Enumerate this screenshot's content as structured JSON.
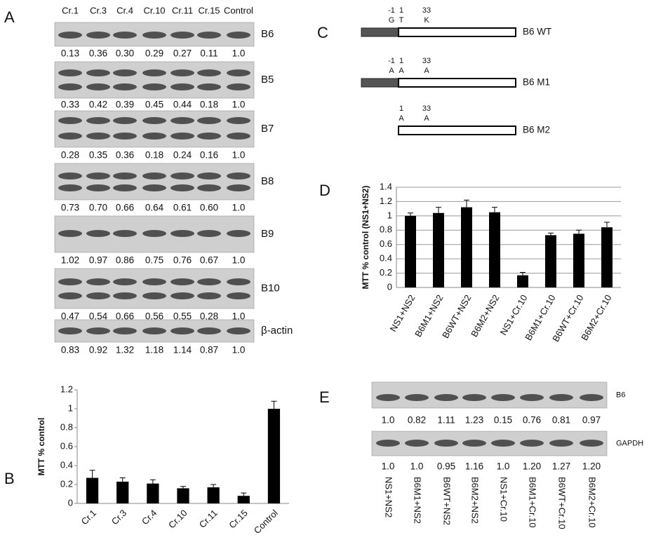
{
  "panel_labels": [
    "A",
    "B",
    "C",
    "D",
    "E"
  ],
  "panel_a": {
    "lanes": [
      "Cr.1",
      "Cr.3",
      "Cr.4",
      "Cr.10",
      "Cr.11",
      "Cr.15",
      "Control"
    ],
    "blots": [
      {
        "name": "B6",
        "values": [
          "0.13",
          "0.36",
          "0.30",
          "0.29",
          "0.27",
          "0.11",
          "1.0"
        ]
      },
      {
        "name": "B5",
        "values": [
          "0.33",
          "0.42",
          "0.39",
          "0.45",
          "0.44",
          "0.18",
          "1.0"
        ]
      },
      {
        "name": "B7",
        "values": [
          "0.28",
          "0.35",
          "0.36",
          "0.18",
          "0.24",
          "0.16",
          "1.0"
        ]
      },
      {
        "name": "B8",
        "values": [
          "0.73",
          "0.70",
          "0.66",
          "0.64",
          "0.61",
          "0.60",
          "1.0"
        ]
      },
      {
        "name": "B9",
        "values": [
          "1.02",
          "0.97",
          "0.86",
          "0.75",
          "0.76",
          "0.67",
          "1.0"
        ]
      },
      {
        "name": "B10",
        "values": [
          "0.47",
          "0.54",
          "0.66",
          "0.56",
          "0.55",
          "0.28",
          "1.0"
        ]
      },
      {
        "name": "β-actin",
        "values": [
          "0.83",
          "0.92",
          "1.32",
          "1.18",
          "1.14",
          "0.87",
          "1.0"
        ]
      }
    ]
  },
  "chart_data": [
    {
      "type": "bar",
      "y_label": "MTT % control",
      "categories": [
        "Cr.1",
        "Cr.3",
        "Cr.4",
        "Cr.10",
        "Cr.11",
        "Cr.15",
        "Control"
      ],
      "values": [
        0.27,
        0.23,
        0.21,
        0.16,
        0.17,
        0.08,
        1.0
      ],
      "errors": [
        0.08,
        0.04,
        0.04,
        0.02,
        0.03,
        0.03,
        0.08
      ],
      "color": "#000000",
      "ylim": [
        0,
        1.2
      ],
      "yticks": [
        0,
        0.2,
        0.4,
        0.6,
        0.8,
        1,
        1.2
      ],
      "grid": false
    },
    {
      "type": "bar",
      "y_label": "MTT % control (NS1+NS2)",
      "categories": [
        "NS1+NS2",
        "B6M1+NS2",
        "B6WT+NS2",
        "B6M2+NS2",
        "NS1+Cr.10",
        "B6M1+Cr.10",
        "B6WT+Cr.10",
        "B6M2+Cr.10"
      ],
      "values": [
        1.0,
        1.04,
        1.12,
        1.05,
        0.17,
        0.73,
        0.75,
        0.84
      ],
      "errors": [
        0.04,
        0.08,
        0.1,
        0.07,
        0.04,
        0.03,
        0.05,
        0.07
      ],
      "color": "#000000",
      "ylim": [
        0,
        1.4
      ],
      "yticks": [
        0,
        0.2,
        0.4,
        0.6,
        0.8,
        1,
        1.2,
        1.4
      ],
      "grid": true
    }
  ],
  "panel_c": {
    "constructs": [
      {
        "name": "B6 WT",
        "markers": [
          {
            "pos": "-1",
            "res": "G"
          },
          {
            "pos": "1",
            "res": "T"
          },
          {
            "pos": "33",
            "res": "K"
          }
        ]
      },
      {
        "name": "B6 M1",
        "markers": [
          {
            "pos": "-1",
            "res": "A"
          },
          {
            "pos": "1",
            "res": "A"
          },
          {
            "pos": "33",
            "res": "A"
          }
        ]
      },
      {
        "name": "B6 M2",
        "markers": [
          {
            "pos": "1",
            "res": "A"
          },
          {
            "pos": "33",
            "res": "A"
          }
        ]
      }
    ]
  },
  "panel_e": {
    "lanes": [
      "NS1+NS2",
      "B6M1+NS2",
      "B6WT+NS2",
      "B6M2+NS2",
      "NS1+Cr.10",
      "B6M1+Cr.10",
      "B6WT+Cr.10",
      "B6M2+Cr.10"
    ],
    "blots": [
      {
        "name": "B6",
        "values": [
          "1.0",
          "0.82",
          "1.11",
          "1.23",
          "0.15",
          "0.76",
          "0.81",
          "0.97"
        ]
      },
      {
        "name": "GAPDH",
        "values": [
          "1.0",
          "1.0",
          "0.95",
          "1.16",
          "1.0",
          "1.20",
          "1.27",
          "1.20"
        ]
      }
    ]
  }
}
